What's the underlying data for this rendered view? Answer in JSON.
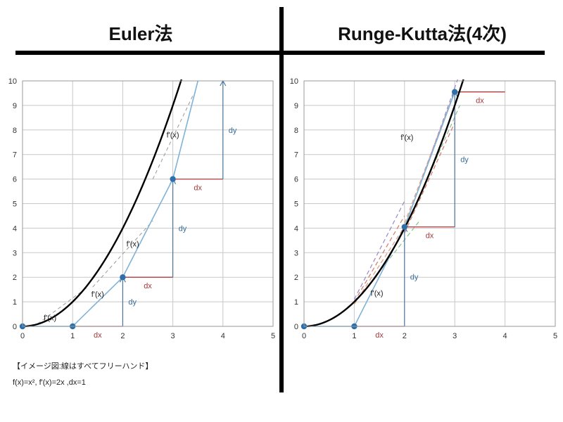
{
  "titles": {
    "left": "Euler法",
    "right": "Runge-Kutta法(4次)"
  },
  "notes": {
    "caption": "【イメージ図:線はすべてフリーハンド】",
    "formula": "f(x)=x², f'(x)=2x ,dx=1"
  },
  "colors": {
    "curve": "#000000",
    "approx": "#7fb2d6",
    "dx_line": "#b23c3c",
    "dy_line": "#3f6f9a",
    "grid": "#c8c8c8",
    "point": "#2e6faa"
  },
  "chart_data": [
    {
      "type": "line",
      "x_ticks": [
        "0",
        "1",
        "2",
        "3",
        "4",
        "5"
      ],
      "y_ticks": [
        "0",
        "1",
        "2",
        "3",
        "4",
        "5",
        "6",
        "7",
        "8",
        "9",
        "10"
      ],
      "xlim": [
        0,
        5
      ],
      "ylim": [
        0,
        10
      ],
      "grid": true,
      "curve": {
        "fn": "x^2",
        "x_range": [
          0,
          3.2
        ]
      },
      "points": [
        {
          "x": 0,
          "y": 0
        },
        {
          "x": 1,
          "y": 0
        },
        {
          "x": 2,
          "y": 2
        },
        {
          "x": 3,
          "y": 6
        }
      ],
      "approx_path": [
        {
          "x": 0,
          "y": 0
        },
        {
          "x": 1,
          "y": 0
        },
        {
          "x": 2,
          "y": 2
        },
        {
          "x": 3,
          "y": 6
        },
        {
          "x": 3.5,
          "y": 10
        }
      ],
      "dx_segments": [
        {
          "x0": 1,
          "x1": 2,
          "y": 0,
          "label": "dx"
        },
        {
          "x0": 2,
          "x1": 3,
          "y": 2,
          "label": "dx"
        },
        {
          "x0": 3,
          "x1": 4,
          "y": 6,
          "label": "dx"
        }
      ],
      "dy_segments": [
        {
          "x": 2,
          "y0": 0,
          "y1": 2,
          "label": "dy"
        },
        {
          "x": 3,
          "y0": 2,
          "y1": 6,
          "label": "dy"
        },
        {
          "x": 4,
          "y0": 6,
          "y1": 10,
          "label": "dy"
        }
      ],
      "slope_labels": [
        {
          "x": 0.55,
          "y": 0.25,
          "text": "f'(x)"
        },
        {
          "x": 1.5,
          "y": 1.2,
          "text": "f'(x)"
        },
        {
          "x": 2.2,
          "y": 3.25,
          "text": "f'(x)"
        },
        {
          "x": 3.0,
          "y": 7.7,
          "text": "f'(x)"
        }
      ],
      "tangents": [
        {
          "x0": 0.3,
          "y0": 0.1,
          "x1": 1.3,
          "y1": 1.6
        },
        {
          "x0": 1.4,
          "y0": 1.6,
          "x1": 2.6,
          "y1": 4.3
        },
        {
          "x0": 2.6,
          "y0": 6.0,
          "x1": 3.4,
          "y1": 9.4
        }
      ]
    },
    {
      "type": "line",
      "x_ticks": [
        "0",
        "1",
        "2",
        "3",
        "4",
        "5"
      ],
      "y_ticks": [
        "0",
        "1",
        "2",
        "3",
        "4",
        "5",
        "6",
        "7",
        "8",
        "9",
        "10"
      ],
      "xlim": [
        0,
        5
      ],
      "ylim": [
        0,
        10
      ],
      "grid": true,
      "curve": {
        "fn": "x^2",
        "x_range": [
          0,
          3.2
        ]
      },
      "points": [
        {
          "x": 0,
          "y": 0
        },
        {
          "x": 1,
          "y": 0
        },
        {
          "x": 2,
          "y": 4.05
        },
        {
          "x": 3,
          "y": 9.55
        }
      ],
      "approx_path": [
        {
          "x": 0,
          "y": 0
        },
        {
          "x": 1,
          "y": 0
        },
        {
          "x": 2,
          "y": 4.05
        },
        {
          "x": 3,
          "y": 9.55
        }
      ],
      "dx_segments": [
        {
          "x0": 1,
          "x1": 2,
          "y": 0,
          "label": "dx"
        },
        {
          "x0": 2,
          "x1": 3,
          "y": 4.05,
          "label": "dx"
        },
        {
          "x0": 3,
          "x1": 4,
          "y": 9.55,
          "label": "dx"
        }
      ],
      "dy_segments": [
        {
          "x": 2,
          "y0": 0,
          "y1": 4.05,
          "label": "dy"
        },
        {
          "x": 3,
          "y0": 4.05,
          "y1": 9.55,
          "label": "dy"
        }
      ],
      "slope_labels": [
        {
          "x": 1.45,
          "y": 1.25,
          "text": "f'(x)"
        },
        {
          "x": 2.05,
          "y": 7.6,
          "text": "f'(x)"
        }
      ],
      "dashed_lines": [
        {
          "x0": 1.0,
          "y0": 1.1,
          "x1": 2.0,
          "y1": 5.1,
          "color": "#9a86c8"
        },
        {
          "x0": 1.0,
          "y0": 1.0,
          "x1": 2.0,
          "y1": 4.5,
          "color": "#d07a6a"
        },
        {
          "x0": 1.0,
          "y0": 0.9,
          "x1": 2.2,
          "y1": 4.7,
          "color": "#e39a7a"
        },
        {
          "x0": 1.1,
          "y0": 1.2,
          "x1": 2.3,
          "y1": 4.3,
          "color": "#8cbf8c"
        },
        {
          "x0": 2.0,
          "y0": 4.0,
          "x1": 3.1,
          "y1": 10.3,
          "color": "#9a86c8"
        },
        {
          "x0": 2.0,
          "y0": 3.8,
          "x1": 3.0,
          "y1": 8.3,
          "color": "#d07a6a"
        },
        {
          "x0": 2.0,
          "y0": 4.2,
          "x1": 3.0,
          "y1": 9.6,
          "color": "#e39a7a"
        },
        {
          "x0": 2.0,
          "y0": 3.9,
          "x1": 3.1,
          "y1": 9.0,
          "color": "#8cbf8c"
        }
      ]
    }
  ]
}
